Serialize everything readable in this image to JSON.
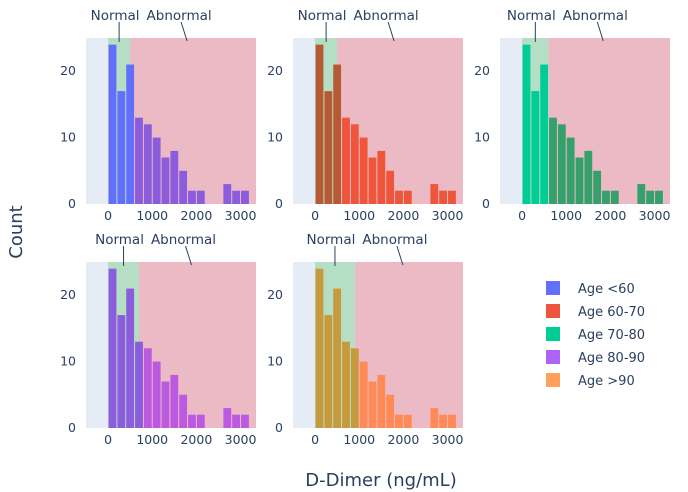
{
  "chart_data": {
    "type": "bar",
    "xlabel": "D-Dimer (ng/mL)",
    "ylabel": "Count",
    "bin_width": 200,
    "bin_starts": [
      0,
      200,
      400,
      600,
      800,
      1000,
      1200,
      1400,
      1600,
      1800,
      2000,
      2200,
      2400,
      2600,
      2800,
      3000
    ],
    "counts": [
      24,
      17,
      21,
      13,
      12,
      10,
      7,
      8,
      5,
      2,
      2,
      0,
      0,
      3,
      2,
      2
    ],
    "xlim": [
      -500,
      3350
    ],
    "ylim": [
      0,
      25
    ],
    "xticks": [
      "0",
      "1000",
      "2000",
      "3000"
    ],
    "yticks": [
      "0",
      "10",
      "20"
    ],
    "grid": false,
    "legend_position": "right",
    "annotations": {
      "normal": "Normal",
      "abnormal": "Abnormal"
    },
    "colors": {
      "normal_band": "#b5dfc4",
      "abnormal_band": "#ecbac4",
      "plot_bg": "#e5ecf6"
    },
    "panels": [
      {
        "name": "Age <60",
        "color": "#636efa",
        "over_color": "#8b5cdc",
        "threshold": 500
      },
      {
        "name": "Age 60-70",
        "color": "#b65a35",
        "over_color": "#ef553b",
        "threshold": 500
      },
      {
        "name": "Age 70-80",
        "color": "#00cc96",
        "over_color": "#35a06b",
        "threshold": 600
      },
      {
        "name": "Age 80-90",
        "color": "#8b5cdc",
        "over_color": "#bb5ae0",
        "threshold": 700
      },
      {
        "name": "Age >90",
        "color": "#c89a3e",
        "over_color": "#ff8a55",
        "threshold": 900
      }
    ]
  },
  "legend": {
    "items": [
      {
        "label": "Age <60",
        "color": "#636efa"
      },
      {
        "label": "Age 60-70",
        "color": "#ef553b"
      },
      {
        "label": "Age 70-80",
        "color": "#00cc96"
      },
      {
        "label": "Age 80-90",
        "color": "#ab63fa"
      },
      {
        "label": "Age >90",
        "color": "#ffa15a"
      }
    ]
  }
}
